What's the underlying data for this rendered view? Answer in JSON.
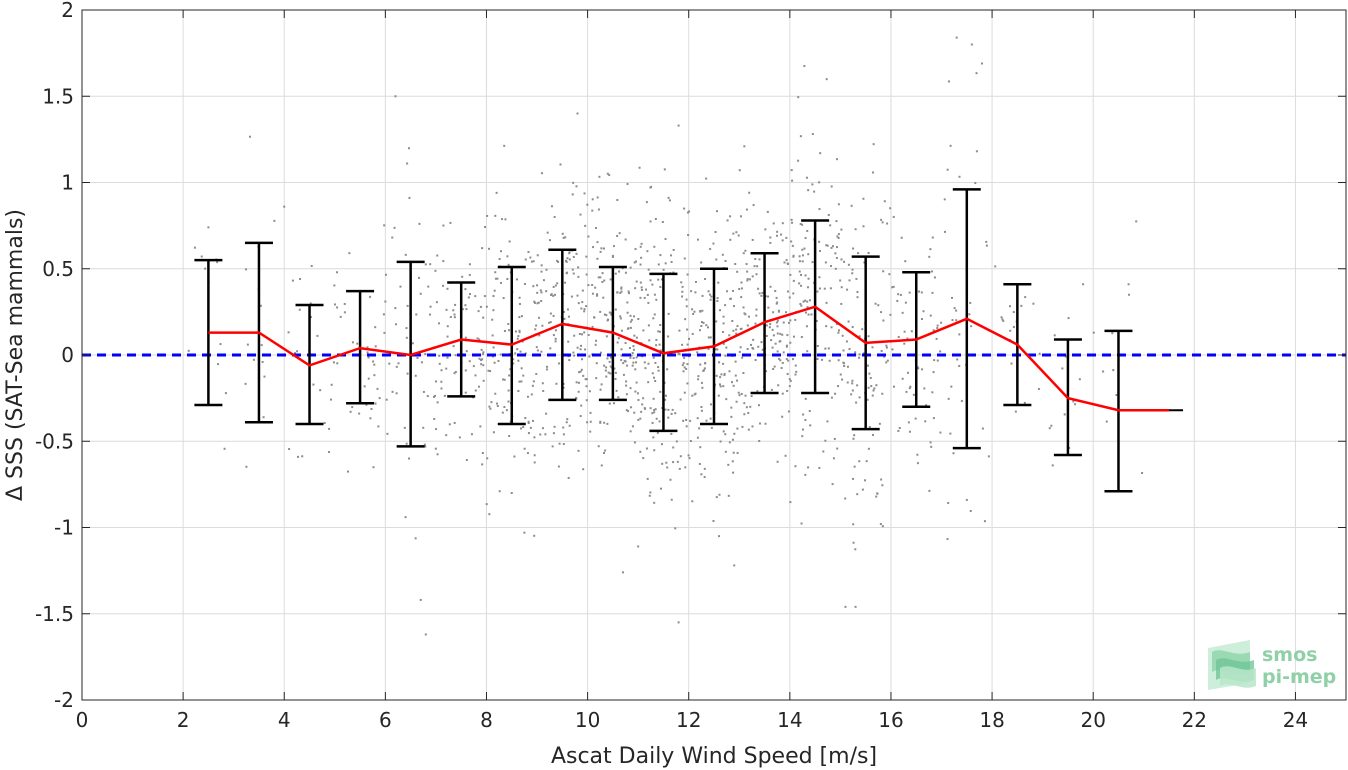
{
  "chart_data": {
    "type": "scatter",
    "xlabel": "Ascat Daily Wind Speed [m/s]",
    "ylabel": "Δ SSS (SAT-Sea mammals)",
    "xlim": [
      0,
      25
    ],
    "ylim": [
      -2,
      2
    ],
    "xticks": [
      0,
      2,
      4,
      6,
      8,
      10,
      12,
      14,
      16,
      18,
      20,
      22,
      24
    ],
    "yticks": [
      -2,
      -1.5,
      -1,
      -0.5,
      0,
      0.5,
      1,
      1.5,
      2
    ],
    "grid": true,
    "reference_line": {
      "y": 0,
      "style": "dashed",
      "color": "#0000ff"
    },
    "scatter_color": "#8c8c8c",
    "mean_line_color": "#ff0000",
    "errorbar_color": "#000000",
    "bins": [
      {
        "x": 2.5,
        "mean": 0.13,
        "lower": -0.29,
        "upper": 0.55
      },
      {
        "x": 3.5,
        "mean": 0.13,
        "lower": -0.39,
        "upper": 0.65
      },
      {
        "x": 4.5,
        "mean": -0.06,
        "lower": -0.4,
        "upper": 0.29
      },
      {
        "x": 5.5,
        "mean": 0.04,
        "lower": -0.28,
        "upper": 0.37
      },
      {
        "x": 6.5,
        "mean": 0.0,
        "lower": -0.53,
        "upper": 0.54
      },
      {
        "x": 7.5,
        "mean": 0.09,
        "lower": -0.24,
        "upper": 0.42
      },
      {
        "x": 8.5,
        "mean": 0.06,
        "lower": -0.4,
        "upper": 0.51
      },
      {
        "x": 9.5,
        "mean": 0.18,
        "lower": -0.26,
        "upper": 0.61
      },
      {
        "x": 10.5,
        "mean": 0.13,
        "lower": -0.26,
        "upper": 0.51
      },
      {
        "x": 11.5,
        "mean": 0.01,
        "lower": -0.44,
        "upper": 0.47
      },
      {
        "x": 12.5,
        "mean": 0.05,
        "lower": -0.4,
        "upper": 0.5
      },
      {
        "x": 13.5,
        "mean": 0.19,
        "lower": -0.22,
        "upper": 0.59
      },
      {
        "x": 14.5,
        "mean": 0.28,
        "lower": -0.22,
        "upper": 0.78
      },
      {
        "x": 15.5,
        "mean": 0.07,
        "lower": -0.43,
        "upper": 0.57
      },
      {
        "x": 16.5,
        "mean": 0.09,
        "lower": -0.3,
        "upper": 0.48
      },
      {
        "x": 17.5,
        "mean": 0.21,
        "lower": -0.54,
        "upper": 0.96
      },
      {
        "x": 18.5,
        "mean": 0.06,
        "lower": -0.29,
        "upper": 0.41
      },
      {
        "x": 19.5,
        "mean": -0.25,
        "lower": -0.58,
        "upper": 0.09
      },
      {
        "x": 20.5,
        "mean": -0.32,
        "lower": -0.79,
        "upper": 0.14
      },
      {
        "x": 21.5,
        "mean": -0.32,
        "lower": null,
        "upper": null
      }
    ],
    "scatter_outliers": [
      [
        2.5,
        0.74
      ],
      [
        4.0,
        0.86
      ],
      [
        6.0,
        0.31
      ],
      [
        6.2,
        1.5
      ],
      [
        6.4,
        -0.94
      ],
      [
        6.7,
        -1.42
      ],
      [
        6.8,
        -1.62
      ],
      [
        8.2,
        0.94
      ],
      [
        8.5,
        -0.8
      ],
      [
        9.8,
        1.4
      ],
      [
        10.7,
        -1.26
      ],
      [
        11.0,
        -1.11
      ],
      [
        11.8,
        1.33
      ],
      [
        11.8,
        -1.55
      ],
      [
        12.6,
        -1.05
      ],
      [
        12.9,
        -1.22
      ],
      [
        13.1,
        1.21
      ],
      [
        14.6,
        1.17
      ],
      [
        15.1,
        -1.46
      ],
      [
        15.3,
        -1.46
      ],
      [
        15.8,
        -0.98
      ],
      [
        17.3,
        1.84
      ],
      [
        17.6,
        1.8
      ],
      [
        17.8,
        1.69
      ],
      [
        17.5,
        -0.84
      ],
      [
        19.2,
        -0.64
      ],
      [
        19.8,
        0.41
      ],
      [
        20.7,
        0.41
      ]
    ]
  },
  "logo": {
    "line1": "smos",
    "line2": "pi-mep"
  }
}
